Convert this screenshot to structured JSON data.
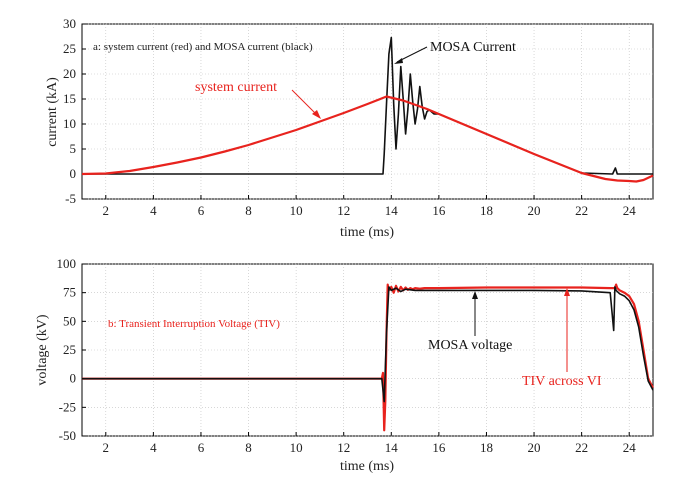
{
  "chart_data": [
    {
      "type": "line",
      "panel": "top",
      "xlabel": "time (ms)",
      "ylabel": "current (kA)",
      "xlim": [
        1,
        25
      ],
      "ylim": [
        -5,
        30
      ],
      "xticks": [
        2,
        4,
        6,
        8,
        10,
        12,
        14,
        16,
        18,
        20,
        22,
        24
      ],
      "yticks": [
        -5,
        0,
        5,
        10,
        15,
        20,
        25,
        30
      ],
      "annotations": {
        "caption": "a: system current (red) and MOSA current (black)",
        "mosa_label": "MOSA Current",
        "system_label": "system current"
      },
      "series": [
        {
          "name": "system current",
          "color": "#e8231e",
          "x": [
            1,
            2,
            3,
            4,
            5,
            6,
            7,
            8,
            9,
            10,
            11,
            12,
            13,
            13.8,
            14.5,
            15.5,
            16,
            18,
            20,
            22,
            23,
            23.5,
            24,
            24.3,
            24.6,
            25
          ],
          "y": [
            0,
            0.1,
            0.6,
            1.4,
            2.3,
            3.3,
            4.5,
            5.8,
            7.3,
            8.8,
            10.5,
            12.2,
            14.0,
            15.5,
            14.7,
            13.0,
            12.0,
            8.0,
            4.0,
            0.2,
            -1.0,
            -1.3,
            -1.4,
            -1.5,
            -1.2,
            -0.3
          ]
        },
        {
          "name": "MOSA current",
          "color": "#111111",
          "x": [
            1,
            13.65,
            13.7,
            13.8,
            13.9,
            14.0,
            14.1,
            14.2,
            14.3,
            14.4,
            14.5,
            14.6,
            14.7,
            14.8,
            14.9,
            15.0,
            15.1,
            15.2,
            15.3,
            15.4,
            15.5,
            15.6,
            15.8,
            16.0,
            18,
            20,
            22,
            23.3,
            23.42,
            23.5,
            23.6,
            25
          ],
          "y": [
            0,
            0,
            4,
            14,
            24,
            27.3,
            14,
            5,
            12,
            21.5,
            15,
            8,
            13,
            20,
            14.5,
            10,
            13,
            17.5,
            13.5,
            11,
            12.5,
            12.8,
            12.0,
            12.0,
            8.0,
            4.0,
            0.2,
            0,
            1.2,
            0,
            0,
            0
          ]
        }
      ]
    },
    {
      "type": "line",
      "panel": "bottom",
      "xlabel": "time (ms)",
      "ylabel": "voltage (kV)",
      "xlim": [
        1,
        25
      ],
      "ylim": [
        -50,
        100
      ],
      "xticks": [
        2,
        4,
        6,
        8,
        10,
        12,
        14,
        16,
        18,
        20,
        22,
        24
      ],
      "yticks": [
        -50,
        -25,
        0,
        25,
        50,
        75,
        100
      ],
      "annotations": {
        "caption": "b: Transient Interruption Voltage (TIV)",
        "mosa_label": "MOSA voltage",
        "tiv_label": "TIV across VI"
      },
      "series": [
        {
          "name": "TIV across VI",
          "color": "#e8231e",
          "x": [
            1,
            13.6,
            13.65,
            13.7,
            13.75,
            13.8,
            13.85,
            13.9,
            14.0,
            14.1,
            14.2,
            14.3,
            14.4,
            14.5,
            14.6,
            14.7,
            14.8,
            14.9,
            15.0,
            15.2,
            15.4,
            16,
            18,
            20,
            22,
            23.2,
            23.4,
            23.45,
            23.5,
            23.6,
            23.8,
            24.0,
            24.2,
            24.4,
            24.6,
            24.8,
            25
          ],
          "y": [
            0,
            0,
            5,
            -45,
            -20,
            40,
            82,
            77,
            80,
            75,
            81,
            76,
            80,
            77,
            79.5,
            77.5,
            79,
            78,
            79,
            78.5,
            79,
            79,
            79.5,
            79.5,
            79.5,
            79,
            79,
            82,
            79,
            77,
            75,
            72,
            65,
            50,
            25,
            0,
            -8
          ]
        },
        {
          "name": "MOSA voltage",
          "color": "#111111",
          "x": [
            1,
            13.6,
            13.7,
            13.8,
            13.9,
            14.0,
            14.2,
            14.4,
            14.6,
            15.0,
            16,
            18,
            20,
            22,
            23.2,
            23.35,
            23.4,
            23.45,
            23.6,
            23.8,
            24.0,
            24.2,
            24.4,
            24.6,
            24.8,
            25
          ],
          "y": [
            0,
            0,
            -20,
            40,
            80,
            77,
            79,
            76,
            78,
            77,
            77,
            77,
            77,
            76.5,
            75,
            42,
            80,
            77,
            74,
            72,
            68,
            60,
            45,
            20,
            -2,
            -10
          ]
        }
      ]
    }
  ]
}
